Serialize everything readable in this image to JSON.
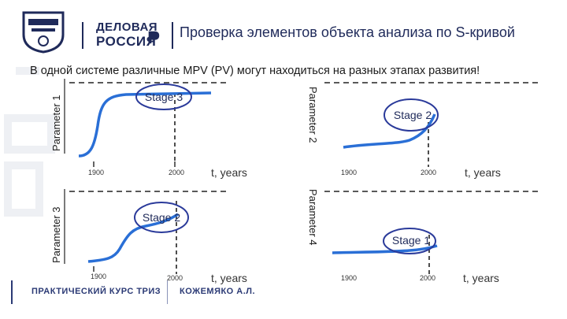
{
  "header": {
    "logo_line1": "ДЕЛОВАЯ",
    "logo_line2": "РОССИЯ",
    "title": "Проверка элементов объекта анализа по S-кривой"
  },
  "subtitle": "В одной системе различные MPV (PV) могут находиться на разных этапах развития!",
  "footer": {
    "left": "ПРАКТИЧЕСКИЙ КУРС ТРИЗ",
    "right": "КОЖЕМЯКО А.Л."
  },
  "colors": {
    "curve": "#2a6fd6",
    "ellipse": "#2a3a9a",
    "text": "#1f2a5a"
  },
  "panels": [
    {
      "id": "p1",
      "ylabel": "Parameter 1",
      "stage": "Stage 3",
      "x_ticks": [
        "1900",
        "2000"
      ],
      "x_unit": "t, years"
    },
    {
      "id": "p2",
      "ylabel": "Parameter 2",
      "stage": "Stage 2",
      "x_ticks": [
        "1900",
        "2000"
      ],
      "x_unit": "t, years"
    },
    {
      "id": "p3",
      "ylabel": "Parameter 3",
      "stage": "Stage 2",
      "x_ticks": [
        "1900",
        "2000"
      ],
      "x_unit": "t, years"
    },
    {
      "id": "p4",
      "ylabel": "Parameter 4",
      "stage": "Stage 1",
      "x_ticks": [
        "1900",
        "2000"
      ],
      "x_unit": "t, years"
    }
  ]
}
